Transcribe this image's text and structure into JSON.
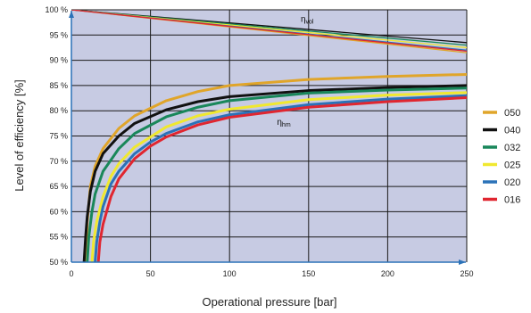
{
  "chart_data": {
    "type": "line",
    "xlabel": "Operational pressure [bar]",
    "ylabel": "Level of efficiency  [%]",
    "xlim": [
      0,
      250
    ],
    "ylim": [
      50,
      100
    ],
    "xticks": [
      "0",
      "50",
      "100",
      "150",
      "200",
      "250"
    ],
    "yticks": [
      "50 %",
      "55 %",
      "60 %",
      "65 %",
      "70 %",
      "75 %",
      "80 %",
      "85 %",
      "90 %",
      "95 %",
      "100 %"
    ],
    "grid": true,
    "legend_position": "right",
    "annotations": [
      {
        "main": "η",
        "sub": "vol",
        "x": 145,
        "y": 97.6
      },
      {
        "main": "η",
        "sub": "hm",
        "x": 130,
        "y": 77.2
      }
    ],
    "series": [
      {
        "name": "050",
        "color": "#e0a52a",
        "hm": {
          "x": [
            9,
            10,
            12,
            15,
            20,
            30,
            40,
            60,
            80,
            100,
            150,
            200,
            250
          ],
          "y": [
            50,
            58,
            65,
            69,
            72.5,
            76.5,
            79,
            82,
            83.8,
            85,
            86.2,
            86.8,
            87.2
          ]
        },
        "vol": {
          "x": [
            0,
            250
          ],
          "y": [
            100,
            91.5
          ]
        }
      },
      {
        "name": "040",
        "color": "#111111",
        "hm": {
          "x": [
            8,
            9,
            10,
            12,
            15,
            20,
            30,
            40,
            60,
            80,
            100,
            150,
            200,
            250
          ],
          "y": [
            50,
            55,
            59,
            64,
            68,
            71.5,
            75,
            77.5,
            80.2,
            81.8,
            82.8,
            84,
            84.6,
            85
          ]
        },
        "vol": {
          "x": [
            0,
            250
          ],
          "y": [
            100,
            93.5
          ]
        }
      },
      {
        "name": "032",
        "color": "#19875a",
        "hm": {
          "x": [
            10,
            11,
            13,
            15,
            20,
            30,
            40,
            60,
            80,
            100,
            150,
            200,
            250
          ],
          "y": [
            50,
            55,
            60,
            63.5,
            68,
            72.5,
            75.5,
            78.8,
            80.7,
            82,
            83.5,
            84.1,
            84.5
          ]
        },
        "vol": {
          "x": [
            0,
            250
          ],
          "y": [
            100,
            93
          ]
        }
      },
      {
        "name": "025",
        "color": "#f0e830",
        "hm": {
          "x": [
            13,
            14,
            16,
            20,
            25,
            30,
            40,
            60,
            80,
            100,
            150,
            200,
            250
          ],
          "y": [
            50,
            54,
            58,
            63,
            67,
            69.5,
            72.8,
            76.8,
            79,
            80.3,
            82.2,
            83.1,
            83.6
          ]
        },
        "vol": {
          "x": [
            0,
            250
          ],
          "y": [
            100,
            92.5
          ]
        }
      },
      {
        "name": "020",
        "color": "#2b72b8",
        "hm": {
          "x": [
            15,
            16,
            18,
            20,
            25,
            30,
            40,
            50,
            60,
            80,
            100,
            150,
            200,
            250
          ],
          "y": [
            50,
            54,
            58,
            61,
            65.5,
            68,
            71.5,
            73.8,
            75.5,
            77.8,
            79.2,
            81.2,
            82.3,
            83
          ]
        },
        "vol": {
          "x": [
            0,
            250
          ],
          "y": [
            100,
            92
          ]
        }
      },
      {
        "name": "016",
        "color": "#e02630",
        "hm": {
          "x": [
            17,
            18,
            20,
            25,
            30,
            40,
            50,
            60,
            80,
            100,
            150,
            200,
            250
          ],
          "y": [
            50,
            54,
            57.5,
            63,
            66.5,
            70.5,
            73,
            74.8,
            77.2,
            78.7,
            80.7,
            81.8,
            82.6
          ]
        },
        "vol": {
          "x": [
            0,
            250
          ],
          "y": [
            100,
            91.8
          ]
        }
      }
    ]
  }
}
